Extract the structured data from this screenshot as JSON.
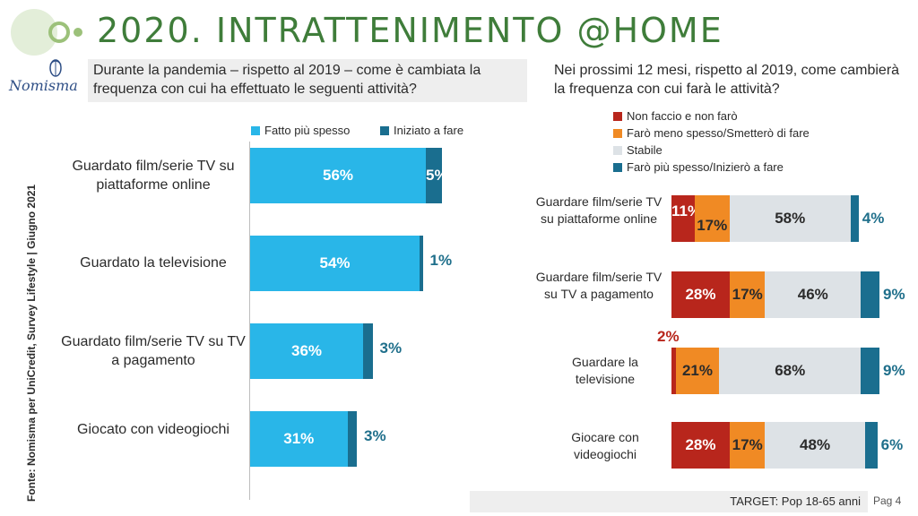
{
  "page": {
    "title": "2020. INTRATTENIMENTO @HOME",
    "logo_text": "Nomisma",
    "source": "Fonte: Nomisma per UniCredit, Survey Lifestyle | Giugno 2021",
    "footer_target": "TARGET: Pop 18-65 anni",
    "page_label": "Pag 4"
  },
  "colors": {
    "title": "#3f7d3a",
    "light_blue": "#29b6e8",
    "dark_teal": "#1a6e8f",
    "red": "#b8261c",
    "orange": "#f08a24",
    "light_gray": "#dde2e6"
  },
  "chart_data": [
    {
      "type": "bar",
      "orientation": "horizontal",
      "stacked": true,
      "question": "Durante la pandemia – rispetto al 2019 – come è cambiata la frequenza con cui ha effettuato le seguenti attività?",
      "categories": [
        "Guardato film/serie TV su piattaforme online",
        "Guardato la televisione",
        "Guardato film/serie TV su TV a pagamento",
        "Giocato con videogiochi"
      ],
      "series": [
        {
          "name": "Fatto più spesso",
          "color": "#29b6e8",
          "values": [
            56,
            54,
            36,
            31
          ],
          "labels": [
            "56%",
            "54%",
            "36%",
            "31%"
          ]
        },
        {
          "name": "Iniziato a fare",
          "color": "#1a6e8f",
          "values": [
            5,
            1,
            3,
            3
          ],
          "labels": [
            "5%",
            "1%",
            "3%",
            "3%"
          ]
        }
      ],
      "legend": "top"
    },
    {
      "type": "bar",
      "orientation": "horizontal",
      "stacked": true,
      "question": "Nei prossimi 12 mesi, rispetto al 2019, come cambierà la frequenza con cui farà le attività?",
      "categories": [
        "Guardare film/serie TV su piattaforme online",
        "Guardare film/serie TV su TV a pagamento",
        "Guardare la televisione",
        "Giocare con videogiochi"
      ],
      "series": [
        {
          "name": "Non faccio e non farò",
          "color": "#b8261c",
          "values": [
            11,
            28,
            2,
            28
          ],
          "labels": [
            "11%",
            "28%",
            "2%",
            "28%"
          ]
        },
        {
          "name": "Farò meno spesso/Smetterò di fare",
          "color": "#f08a24",
          "values": [
            17,
            17,
            21,
            17
          ],
          "labels": [
            "17%",
            "17%",
            "21%",
            "17%"
          ]
        },
        {
          "name": "Stabile",
          "color": "#dde2e6",
          "values": [
            58,
            46,
            68,
            48
          ],
          "labels": [
            "58%",
            "46%",
            "68%",
            "48%"
          ]
        },
        {
          "name": "Farò più spesso/Inizierò a fare",
          "color": "#1a6e8f",
          "values": [
            4,
            9,
            9,
            6
          ],
          "labels": [
            "4%",
            "9%",
            "9%",
            "6%"
          ]
        }
      ],
      "legend": "top"
    }
  ]
}
